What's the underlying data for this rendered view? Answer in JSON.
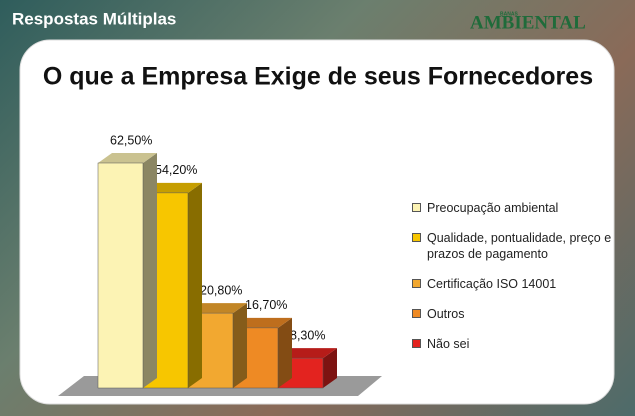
{
  "header": {
    "section": "Respostas Múltiplas",
    "brand_small": "BANAS",
    "brand": "AMBIENTAL"
  },
  "chart_data": {
    "type": "bar3d",
    "title": "O que a Empresa Exige de seus Fornecedores",
    "categories": [
      "Preocupação ambiental",
      "Qualidade, pontualidade, preço e prazos de pagamento",
      "Certificação ISO 14001",
      "Outros",
      "Não sei"
    ],
    "values": [
      62.5,
      54.2,
      20.8,
      16.7,
      8.3
    ],
    "value_labels": [
      "62,50%",
      "54,20%",
      "20,80%",
      "16,70%",
      "8,30%"
    ],
    "colors": [
      "#fcf3b4",
      "#f7c600",
      "#f2a830",
      "#ee8a24",
      "#e3231f"
    ]
  }
}
